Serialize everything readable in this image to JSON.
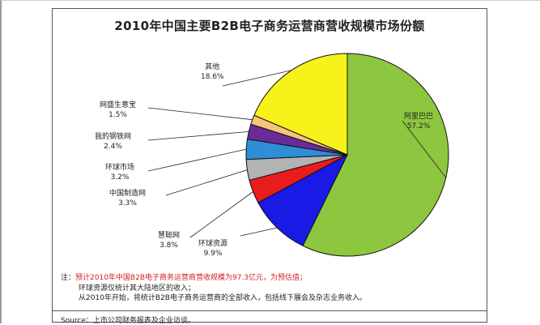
{
  "chart_data": {
    "type": "pie",
    "title": "2010年中国主要B2B电子商务运营商营收规模市场份额",
    "slices": [
      {
        "name": "阿里巴巴",
        "value": 57.2,
        "label": "57.2%",
        "color": "#8dc63f"
      },
      {
        "name": "环球资源",
        "value": 9.9,
        "label": "9.9%",
        "color": "#1a1ae6"
      },
      {
        "name": "慧聪网",
        "value": 3.8,
        "label": "3.8%",
        "color": "#e81c1c"
      },
      {
        "name": "中国制造网",
        "value": 3.3,
        "label": "3.3%",
        "color": "#b3b3b3"
      },
      {
        "name": "环球市场",
        "value": 3.2,
        "label": "3.2%",
        "color": "#2e8fd6"
      },
      {
        "name": "我的钢铁网",
        "value": 2.4,
        "label": "2.4%",
        "color": "#6b2a9a"
      },
      {
        "name": "网盛生意宝",
        "value": 1.5,
        "label": "1.5%",
        "color": "#f7c27a"
      },
      {
        "name": "其他",
        "value": 18.6,
        "label": "18.6%",
        "color": "#f7f21a"
      }
    ]
  },
  "notes": {
    "prefix": "注：",
    "line1": "预计2010年中国B2B电子商务运营商营收规模为97.3亿元，为预估值；",
    "line2": "环球资源仅统计其大陆地区的收入；",
    "line3": "从2010年开始，将统计B2B电子商务运营商的全部收入，包括线下展会及杂志业务收入。"
  },
  "source": "Source：上市公司财务报表及企业访谈。"
}
